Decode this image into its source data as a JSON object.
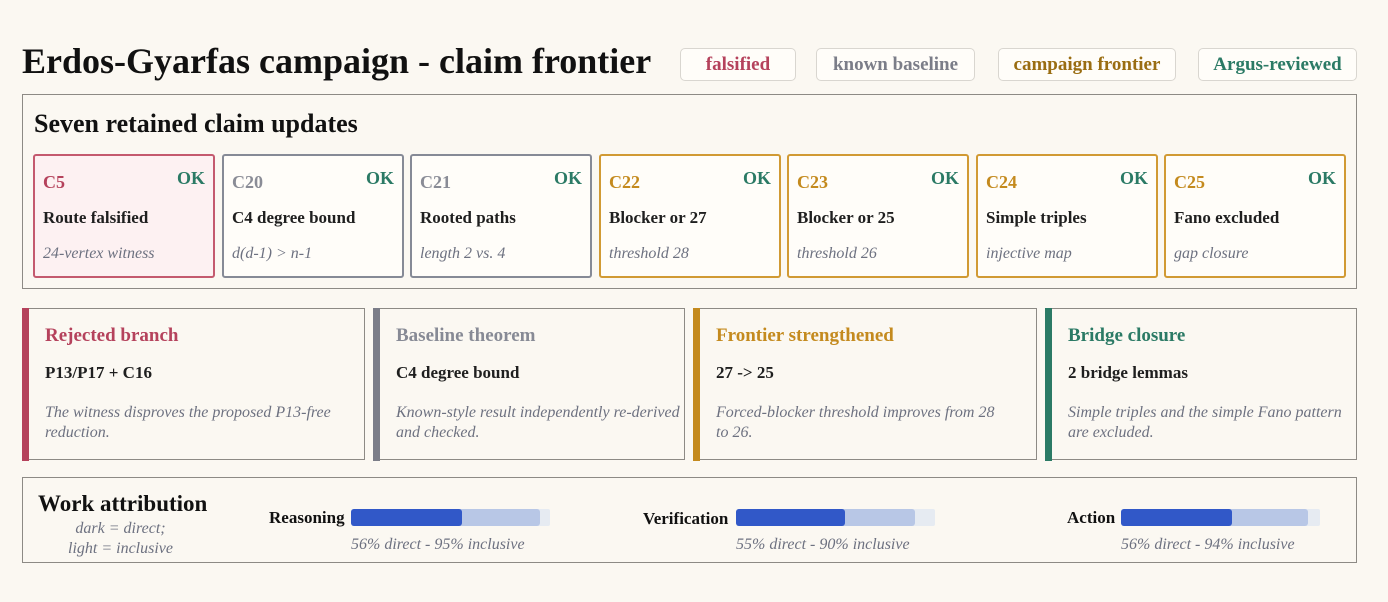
{
  "title": "Erdos-Gyarfas campaign - claim frontier",
  "legend": [
    {
      "label": "falsified",
      "color": "#b5425c"
    },
    {
      "label": "known baseline",
      "color": "#7b7d88"
    },
    {
      "label": "campaign frontier",
      "color": "#9a6d12"
    },
    {
      "label": "Argus-reviewed",
      "color": "#2b7a65"
    }
  ],
  "claims_panel": {
    "title": "Seven retained claim updates",
    "claims": [
      {
        "id": "C5",
        "status": "OK",
        "label": "Route falsified",
        "note": "24-vertex witness",
        "category": "falsified"
      },
      {
        "id": "C20",
        "status": "OK",
        "label": "C4 degree bound",
        "note": "d(d-1) > n-1",
        "category": "baseline"
      },
      {
        "id": "C21",
        "status": "OK",
        "label": "Rooted paths",
        "note": "length 2 vs. 4",
        "category": "baseline"
      },
      {
        "id": "C22",
        "status": "OK",
        "label": "Blocker or 27",
        "note": "threshold 28",
        "category": "frontier"
      },
      {
        "id": "C23",
        "status": "OK",
        "label": "Blocker or 25",
        "note": "threshold 26",
        "category": "frontier"
      },
      {
        "id": "C24",
        "status": "OK",
        "label": "Simple triples",
        "note": "injective map",
        "category": "frontier"
      },
      {
        "id": "C25",
        "status": "OK",
        "label": "Fano excluded",
        "note": "gap closure",
        "category": "frontier"
      }
    ]
  },
  "summaries": [
    {
      "title": "Rejected branch",
      "value": "P13/P17 + C16",
      "text": "The witness disproves the proposed P13-free reduction.",
      "color": "#b5425c"
    },
    {
      "title": "Baseline theorem",
      "value": "C4 degree bound",
      "text": "Known-style result independently re-derived and checked.",
      "color": "#7b7d88"
    },
    {
      "title": "Frontier strengthened",
      "value": "27 -> 25",
      "text": "Forced-blocker threshold improves from 28 to 26.",
      "color": "#c48a1e"
    },
    {
      "title": "Bridge closure",
      "value": "2 bridge lemmas",
      "text": "Simple triples and the simple Fano pattern are excluded.",
      "color": "#2b7a65"
    }
  ],
  "work_attribution": {
    "title": "Work attribution",
    "note_line1": "dark = direct;",
    "note_line2": "light = inclusive",
    "metrics": [
      {
        "label": "Reasoning",
        "direct": 0.56,
        "inclusive": 0.95,
        "caption": "56% direct - 95% inclusive"
      },
      {
        "label": "Verification",
        "direct": 0.55,
        "inclusive": 0.9,
        "caption": "55% direct - 90% inclusive"
      },
      {
        "label": "Action",
        "direct": 0.56,
        "inclusive": 0.94,
        "caption": "56% direct - 94% inclusive"
      }
    ]
  }
}
